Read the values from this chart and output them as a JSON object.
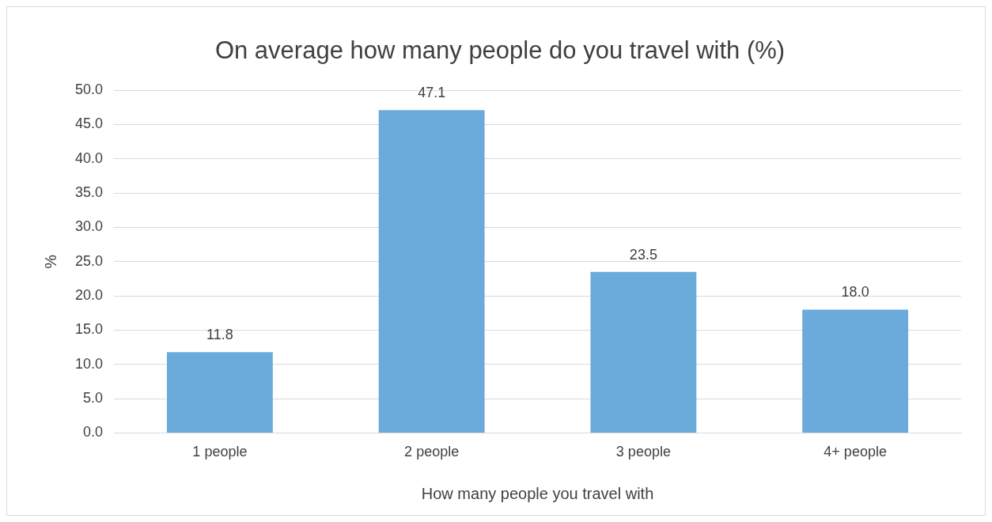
{
  "chart_data": {
    "type": "bar",
    "title": "On average how many people do you travel with (%)",
    "xlabel": "How many people you travel with",
    "ylabel": "%",
    "categories": [
      "1 people",
      "2 people",
      "3 people",
      "4+ people"
    ],
    "values": [
      11.8,
      47.1,
      23.5,
      18.0
    ],
    "value_labels": [
      "11.8",
      "47.1",
      "23.5",
      "18.0"
    ],
    "color": "#6aabdc",
    "ylim": [
      0,
      50
    ],
    "yticks": [
      {
        "value": 0,
        "label": "0.0"
      },
      {
        "value": 5,
        "label": "5.0"
      },
      {
        "value": 10,
        "label": "10.0"
      },
      {
        "value": 15,
        "label": "15.0"
      },
      {
        "value": 20,
        "label": "20.0"
      },
      {
        "value": 25,
        "label": "25.0"
      },
      {
        "value": 30,
        "label": "30.0"
      },
      {
        "value": 35,
        "label": "35.0"
      },
      {
        "value": 40,
        "label": "40.0"
      },
      {
        "value": 45,
        "label": "45.0"
      },
      {
        "value": 50,
        "label": "50.0"
      }
    ],
    "grid": "y",
    "legend": false
  }
}
